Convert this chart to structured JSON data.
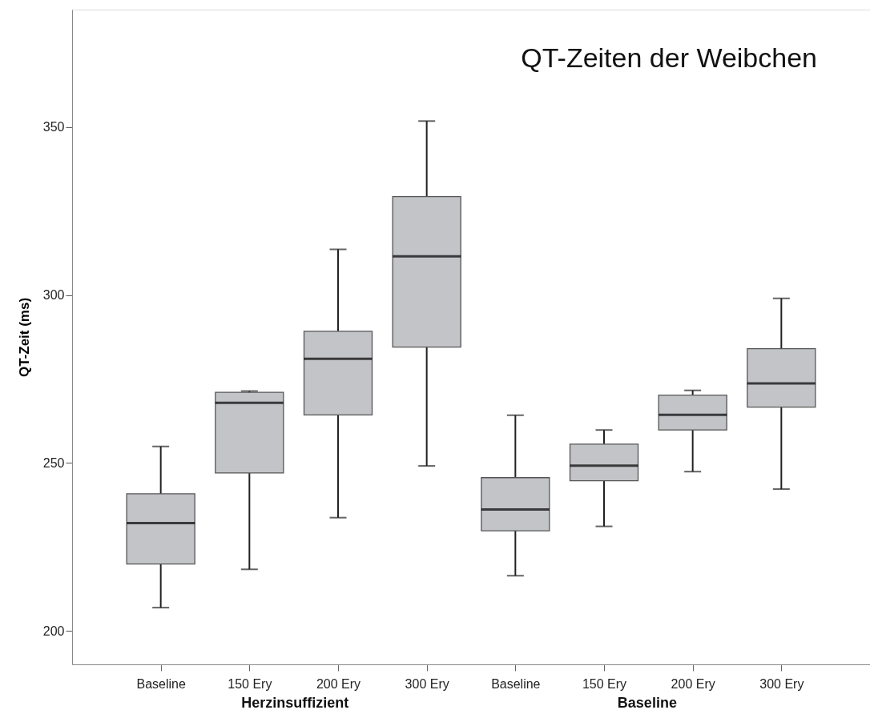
{
  "chart_data": {
    "type": "box",
    "title": "QT-Zeiten der Weibchen",
    "ylabel": "QT-Zeit (ms)",
    "categories": [
      "Baseline",
      "150 Ery",
      "200 Ery",
      "300 Ery",
      "Baseline",
      "150 Ery",
      "200 Ery",
      "300 Ery"
    ],
    "annotations": [
      "Herzinsuffizient",
      "Baseline"
    ],
    "ylim": [
      190,
      385
    ],
    "yticks": [
      200,
      250,
      300,
      350
    ],
    "grid": false,
    "series": [
      {
        "color": "#c3c4c8",
        "boxes": [
          {
            "low": 206.9,
            "q1": 219.9,
            "median": 232.1,
            "q3": 240.8,
            "high": 254.9
          },
          {
            "low": 218.3,
            "q1": 247.0,
            "median": 267.9,
            "q3": 271.0,
            "high": 271.4
          },
          {
            "low": 233.7,
            "q1": 264.3,
            "median": 281.0,
            "q3": 289.2,
            "high": 313.6
          },
          {
            "low": 249.1,
            "q1": 284.5,
            "median": 311.5,
            "q3": 329.3,
            "high": 351.8
          },
          {
            "low": 216.4,
            "q1": 229.8,
            "median": 236.1,
            "q3": 245.6,
            "high": 264.2
          },
          {
            "low": 231.1,
            "q1": 244.7,
            "median": 249.2,
            "q3": 255.6,
            "high": 259.8
          },
          {
            "low": 247.4,
            "q1": 259.8,
            "median": 264.3,
            "q3": 270.2,
            "high": 271.6
          },
          {
            "low": 242.2,
            "q1": 266.6,
            "median": 273.7,
            "q3": 284.0,
            "high": 299.0
          }
        ]
      }
    ]
  }
}
